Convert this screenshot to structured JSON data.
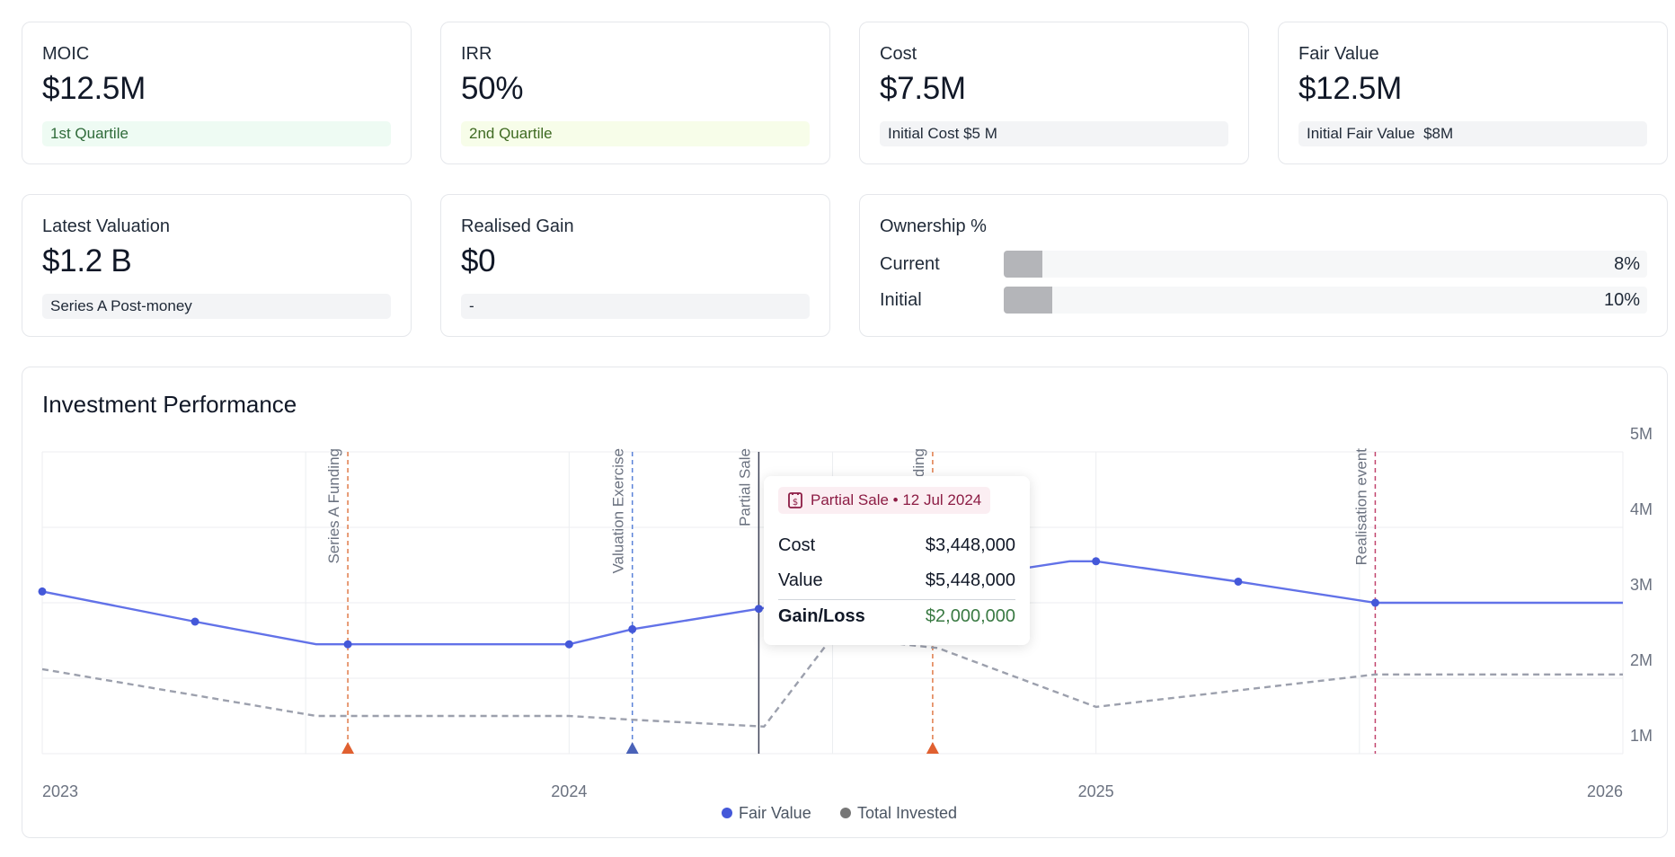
{
  "kpis": [
    {
      "label": "MOIC",
      "value": "$12.5M",
      "sub": "1st Quartile"
    },
    {
      "label": "IRR",
      "value": "50%",
      "sub": "2nd Quartile"
    },
    {
      "label": "Cost",
      "value": "$7.5M",
      "sub": "Initial Cost $5 M"
    },
    {
      "label": "Fair Value",
      "value": "$12.5M",
      "sub": "Initial Fair Value  $8M"
    },
    {
      "label": "Latest Valuation",
      "value": "$1.2 B",
      "sub": "Series A Post-money"
    },
    {
      "label": "Realised Gain",
      "value": "$0",
      "sub": "-"
    }
  ],
  "ownership": {
    "title": "Ownership %",
    "rows": [
      {
        "label": "Current",
        "pct_text": "8%",
        "fraction": 0.08
      },
      {
        "label": "Initial",
        "pct_text": "10%",
        "fraction": 0.1
      }
    ]
  },
  "performance": {
    "title": "Investment Performance"
  },
  "chart_data": {
    "type": "line",
    "title": "Investment Performance",
    "xlabel": "",
    "ylabel": "",
    "xlim": [
      2023.0,
      2026.0
    ],
    "ylim": [
      1,
      5
    ],
    "x_ticks": [
      {
        "v": 2023,
        "label": "2023"
      },
      {
        "v": 2024,
        "label": "2024"
      },
      {
        "v": 2025,
        "label": "2025"
      },
      {
        "v": 2026,
        "label": "2026"
      }
    ],
    "y_ticks": [
      {
        "v": 5,
        "label": "5M"
      },
      {
        "v": 4,
        "label": "4M"
      },
      {
        "v": 3,
        "label": "3M"
      },
      {
        "v": 2,
        "label": "2M"
      },
      {
        "v": 1,
        "label": "1M"
      }
    ],
    "grid": true,
    "legend_position": "bottom-center",
    "series": [
      {
        "name": "Fair Value",
        "color": "#6272e8",
        "marker_color": "#4458d9",
        "style": "solid",
        "points": [
          [
            2023.0,
            3.15
          ],
          [
            2023.29,
            2.75
          ],
          [
            2023.52,
            2.45
          ],
          [
            2023.58,
            2.45
          ],
          [
            2024.0,
            2.45
          ],
          [
            2024.12,
            2.65
          ],
          [
            2024.36,
            2.92
          ],
          [
            2024.95,
            3.55
          ],
          [
            2025.0,
            3.55
          ],
          [
            2025.27,
            3.28
          ],
          [
            2025.53,
            3.0
          ],
          [
            2026.0,
            3.0
          ]
        ],
        "markers": [
          [
            2023.0,
            3.15
          ],
          [
            2023.29,
            2.75
          ],
          [
            2023.58,
            2.45
          ],
          [
            2024.0,
            2.45
          ],
          [
            2024.12,
            2.65
          ],
          [
            2024.36,
            2.92
          ],
          [
            2025.0,
            3.55
          ],
          [
            2025.27,
            3.28
          ],
          [
            2025.53,
            3.0
          ]
        ]
      },
      {
        "name": "Total Invested",
        "color": "#9ca0ad",
        "marker_color": "#777777",
        "style": "dashed",
        "points": [
          [
            2023.0,
            2.12
          ],
          [
            2023.52,
            1.5
          ],
          [
            2024.0,
            1.5
          ],
          [
            2024.12,
            1.45
          ],
          [
            2024.37,
            1.36
          ],
          [
            2024.5,
            2.55
          ],
          [
            2024.7,
            2.4
          ],
          [
            2025.0,
            1.62
          ],
          [
            2025.53,
            2.05
          ],
          [
            2026.0,
            2.05
          ]
        ],
        "markers": []
      }
    ],
    "events": [
      {
        "label": "Series A Funding",
        "x": 2023.58,
        "color": "#e07b4a",
        "style": "dashed",
        "marker": true,
        "marker_color": "#e06030"
      },
      {
        "label": "Valuation Exercise",
        "x": 2024.12,
        "color": "#5b83d9",
        "style": "dashed",
        "marker": true,
        "marker_color": "#4a62b8"
      },
      {
        "label": "Partial Sale",
        "x": 2024.36,
        "color": "#3d4257",
        "style": "solid",
        "marker": false
      },
      {
        "label": "Series B Funding",
        "x": 2024.69,
        "color": "#e07b4a",
        "style": "dashed",
        "marker": true,
        "marker_color": "#e06030"
      },
      {
        "label": "Realisation event",
        "x": 2025.53,
        "color": "#c2456e",
        "style": "dashed",
        "marker": false
      }
    ],
    "tooltip": {
      "badge": "Partial Sale • 12 Jul 2024",
      "rows": [
        {
          "label": "Cost",
          "value": "$3,448,000"
        },
        {
          "label": "Value",
          "value": "$5,448,000"
        },
        {
          "label": "Gain/Loss",
          "value": "$2,000,000"
        }
      ]
    }
  }
}
